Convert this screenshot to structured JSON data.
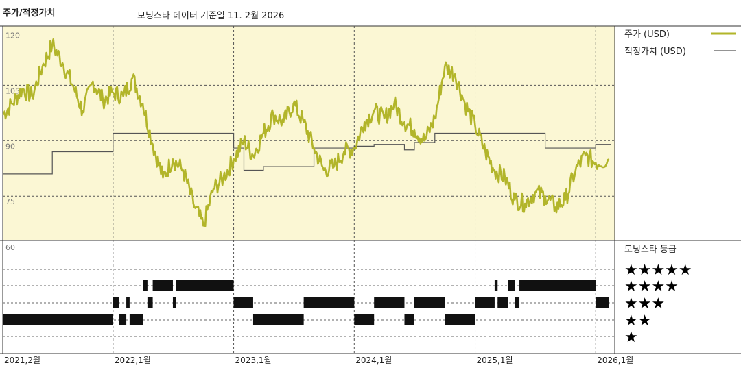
{
  "header": {
    "title": "주가/적정가치",
    "subtitle": "모닝스타 데이터 기준일 11. 2월 2026"
  },
  "legend": {
    "price_label": "주가 (USD)",
    "fair_label": "적정가치 (USD)",
    "rating_title": "모닝스타 등급",
    "price_color": "#b2b52a",
    "fair_color": "#555555",
    "panel_color": "#fbf7d4"
  },
  "chart_data": {
    "type": "line",
    "x_labels": [
      "2021,2월",
      "2022,1월",
      "2023,1월",
      "2024,1월",
      "2025,1월",
      "2026,1월"
    ],
    "price_axis": {
      "ticks": [
        120,
        105,
        90,
        75
      ],
      "ylim": [
        63,
        121
      ]
    },
    "rating_axis": {
      "tick": "60"
    },
    "series": [
      {
        "name": "주가 (USD)",
        "points": [
          [
            "2021-02-01",
            97
          ],
          [
            "2021-03-01",
            100
          ],
          [
            "2021-04-01",
            104
          ],
          [
            "2021-05-01",
            102
          ],
          [
            "2021-06-01",
            110
          ],
          [
            "2021-07-01",
            116
          ],
          [
            "2021-08-01",
            111
          ],
          [
            "2021-09-01",
            105
          ],
          [
            "2021-10-01",
            98
          ],
          [
            "2021-11-01",
            106
          ],
          [
            "2021-12-01",
            101
          ],
          [
            "2022-01-01",
            103
          ],
          [
            "2022-02-01",
            102
          ],
          [
            "2022-03-01",
            107
          ],
          [
            "2022-04-01",
            100
          ],
          [
            "2022-05-01",
            89
          ],
          [
            "2022-06-01",
            80
          ],
          [
            "2022-07-01",
            85
          ],
          [
            "2022-08-01",
            82
          ],
          [
            "2022-09-01",
            73
          ],
          [
            "2022-10-01",
            67
          ],
          [
            "2022-11-01",
            77
          ],
          [
            "2022-12-01",
            80
          ],
          [
            "2023-01-01",
            85
          ],
          [
            "2023-02-01",
            90
          ],
          [
            "2023-03-01",
            86
          ],
          [
            "2023-04-01",
            92
          ],
          [
            "2023-05-01",
            97
          ],
          [
            "2023-06-01",
            95
          ],
          [
            "2023-07-01",
            100
          ],
          [
            "2023-08-01",
            95
          ],
          [
            "2023-09-01",
            88
          ],
          [
            "2023-10-01",
            82
          ],
          [
            "2023-11-01",
            83
          ],
          [
            "2023-12-01",
            87
          ],
          [
            "2024-01-01",
            88
          ],
          [
            "2024-02-01",
            95
          ],
          [
            "2024-03-01",
            98
          ],
          [
            "2024-04-01",
            96
          ],
          [
            "2024-05-01",
            100
          ],
          [
            "2024-06-01",
            95
          ],
          [
            "2024-07-01",
            93
          ],
          [
            "2024-08-01",
            90
          ],
          [
            "2024-09-01",
            96
          ],
          [
            "2024-10-01",
            110
          ],
          [
            "2024-11-01",
            108
          ],
          [
            "2024-12-01",
            100
          ],
          [
            "2025-01-01",
            94
          ],
          [
            "2025-02-01",
            87
          ],
          [
            "2025-03-01",
            82
          ],
          [
            "2025-04-01",
            80
          ],
          [
            "2025-05-01",
            74
          ],
          [
            "2025-06-01",
            73
          ],
          [
            "2025-07-01",
            76
          ],
          [
            "2025-08-01",
            75
          ],
          [
            "2025-09-01",
            72
          ],
          [
            "2025-10-01",
            74
          ],
          [
            "2025-11-01",
            82
          ],
          [
            "2025-12-01",
            86
          ],
          [
            "2026-01-01",
            84
          ],
          [
            "2026-02-11",
            85
          ]
        ]
      },
      {
        "name": "적정가치 (USD)",
        "step_points": [
          [
            "2021-02-01",
            81
          ],
          [
            "2021-07-01",
            87
          ],
          [
            "2022-01-01",
            92
          ],
          [
            "2023-01-01",
            88
          ],
          [
            "2023-02-01",
            82
          ],
          [
            "2023-04-01",
            83
          ],
          [
            "2023-09-01",
            88
          ],
          [
            "2024-01-01",
            88.5
          ],
          [
            "2024-03-01",
            89
          ],
          [
            "2024-06-01",
            87.5
          ],
          [
            "2024-07-01",
            89.5
          ],
          [
            "2024-09-01",
            92
          ],
          [
            "2025-08-01",
            88
          ],
          [
            "2026-01-01",
            89
          ]
        ]
      }
    ],
    "ratings": {
      "levels": [
        "★★★★★",
        "★★★★",
        "★★★",
        "★★",
        "★"
      ],
      "periods": [
        [
          2,
          "2021-02-01",
          "2022-01-01"
        ],
        [
          3,
          "2022-01-01",
          "2022-01-20"
        ],
        [
          2,
          "2022-01-20",
          "2022-02-10"
        ],
        [
          3,
          "2022-02-10",
          "2022-02-20"
        ],
        [
          2,
          "2022-02-20",
          "2022-04-01"
        ],
        [
          4,
          "2022-04-01",
          "2022-04-15"
        ],
        [
          3,
          "2022-04-15",
          "2022-05-01"
        ],
        [
          4,
          "2022-05-01",
          "2022-07-01"
        ],
        [
          3,
          "2022-07-01",
          "2022-07-10"
        ],
        [
          4,
          "2022-07-10",
          "2023-01-01"
        ],
        [
          3,
          "2023-01-01",
          "2023-03-01"
        ],
        [
          2,
          "2023-03-01",
          "2023-08-01"
        ],
        [
          3,
          "2023-08-01",
          "2024-01-01"
        ],
        [
          2,
          "2024-01-01",
          "2024-03-01"
        ],
        [
          3,
          "2024-03-01",
          "2024-06-01"
        ],
        [
          2,
          "2024-06-01",
          "2024-07-01"
        ],
        [
          3,
          "2024-07-01",
          "2024-10-01"
        ],
        [
          2,
          "2024-10-01",
          "2025-01-01"
        ],
        [
          3,
          "2025-01-01",
          "2025-03-01"
        ],
        [
          4,
          "2025-03-01",
          "2025-03-10"
        ],
        [
          3,
          "2025-03-10",
          "2025-04-10"
        ],
        [
          4,
          "2025-04-10",
          "2025-05-01"
        ],
        [
          3,
          "2025-05-01",
          "2025-05-15"
        ],
        [
          4,
          "2025-05-15",
          "2026-01-01"
        ],
        [
          3,
          "2026-01-01",
          "2026-02-11"
        ]
      ]
    },
    "grid": true,
    "legend_placement": "right"
  }
}
